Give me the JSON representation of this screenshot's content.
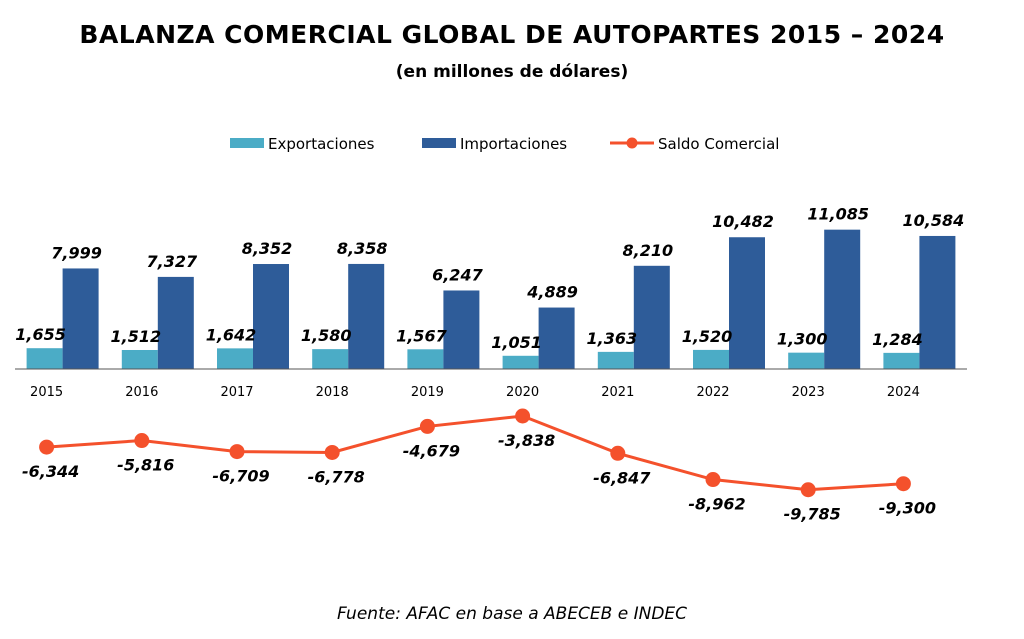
{
  "header": {
    "title": "BALANZA COMERCIAL GLOBAL DE AUTOPARTES 2015 – 2024",
    "subtitle": "(en millones de dólares)"
  },
  "footer": {
    "source": "Fuente: AFAC en base a ABECEB e INDEC"
  },
  "chart_data": {
    "type": "bar",
    "title": "BALANZA COMERCIAL GLOBAL DE AUTOPARTES 2015 – 2024",
    "subtitle": "(en millones de dólares)",
    "categories": [
      "2015",
      "2016",
      "2017",
      "2018",
      "2019",
      "2020",
      "2021",
      "2022",
      "2023",
      "2024"
    ],
    "series": [
      {
        "name": "Exportaciones",
        "kind": "bar",
        "color": "#4bacc6",
        "values": [
          1655,
          1512,
          1642,
          1580,
          1567,
          1051,
          1363,
          1520,
          1300,
          1284
        ],
        "labels": [
          "1,655",
          "1,512",
          "1,642",
          "1,580",
          "1,567",
          "1,051",
          "1,363",
          "1,520",
          "1,300",
          "1,284"
        ]
      },
      {
        "name": "Importaciones",
        "kind": "bar",
        "color": "#2e5c99",
        "values": [
          7999,
          7327,
          8352,
          8358,
          6247,
          4889,
          8210,
          10482,
          11085,
          10584
        ],
        "labels": [
          "7,999",
          "7,327",
          "8,352",
          "8,358",
          "6,247",
          "4,889",
          "8,210",
          "10,482",
          "11,085",
          "10,584"
        ]
      },
      {
        "name": "Saldo Comercial",
        "kind": "line",
        "color": "#f4512c",
        "values": [
          -6344,
          -5816,
          -6709,
          -6778,
          -4679,
          -3838,
          -6847,
          -8962,
          -9785,
          -9300
        ],
        "labels": [
          "-6,344",
          "-5,816",
          "-6,709",
          "-6,778",
          "-4,679",
          "-3,838",
          "-6,847",
          "-8,962",
          "-9,785",
          "-9,300"
        ]
      }
    ],
    "legend_position": "top-center",
    "grid": false,
    "ylim": [
      -10000,
      12000
    ]
  }
}
